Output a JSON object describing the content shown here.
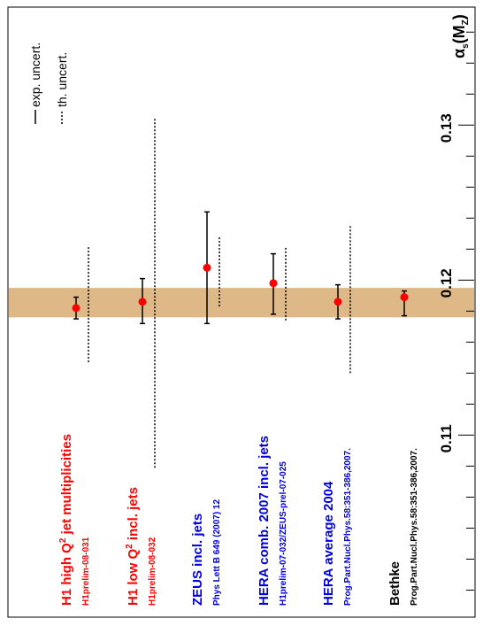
{
  "chart_data": {
    "type": "scatter",
    "orientation": "rotated",
    "axis_label": "αs(MZ)",
    "axis_label_main": "α",
    "axis_label_sub1": "s",
    "axis_label_mid": "(M",
    "axis_label_sub2": "Z",
    "axis_label_end": ")",
    "xlim": [
      0.099,
      0.1375
    ],
    "ticks": [
      {
        "value": 0.11,
        "label": "0.11"
      },
      {
        "value": 0.12,
        "label": "0.12"
      },
      {
        "value": 0.13,
        "label": "0.13"
      }
    ],
    "world_average_band": {
      "value": 0.1189,
      "low": 0.1176,
      "high": 0.1195,
      "color": "#deb887"
    },
    "legend": {
      "exp": "exp. uncert.",
      "th": "th. uncert."
    },
    "colors": {
      "red": "#ff0000",
      "blue": "#0000dd",
      "black": "#000000"
    },
    "measurements": [
      {
        "title": "H1 high Q",
        "sup": "2",
        "title_rest": " jet multiplicities",
        "ref": "H1prelim-08-031",
        "color": "#ff0000",
        "value": 0.1182,
        "exp": [
          0.1175,
          0.1189
        ],
        "th": [
          0.1147,
          0.1222
        ]
      },
      {
        "title": "H1 low Q",
        "sup": "2",
        "title_rest": " incl. jets",
        "ref": "H1prelim-08-032",
        "color": "#ff0000",
        "value": 0.1186,
        "exp": [
          0.1172,
          0.1201
        ],
        "th": [
          0.1079,
          0.1305
        ]
      },
      {
        "title": "ZEUS incl. jets",
        "sup": "",
        "title_rest": "",
        "ref": "Phys Lett B 649 (2007) 12",
        "color": "#0000dd",
        "value": 0.1208,
        "exp": [
          0.1172,
          0.1244
        ],
        "th": [
          0.1183,
          0.1228
        ]
      },
      {
        "title": "HERA comb. 2007 incl. jets",
        "sup": "",
        "title_rest": "",
        "ref": "H1prelim-07-032/ZEUS-prel-07-025",
        "color": "#0000dd",
        "value": 0.1198,
        "exp": [
          0.1178,
          0.1217
        ],
        "th": [
          0.1174,
          0.1222
        ]
      },
      {
        "title": "HERA average 2004",
        "sup": "",
        "title_rest": "",
        "ref": "Prog.Part.Nucl.Phys.58:351-386,2007.",
        "color": "#0000dd",
        "value": 0.1186,
        "exp": [
          0.1175,
          0.1197
        ],
        "th": [
          0.114,
          0.1235
        ]
      },
      {
        "title": "Bethke",
        "sup": "",
        "title_rest": "",
        "ref": "Prog.Part.Nucl.Phys.58:351-386,2007.",
        "color": "#000000",
        "value": 0.1189,
        "exp": [
          0.1177,
          0.1193
        ],
        "th": null
      }
    ]
  }
}
